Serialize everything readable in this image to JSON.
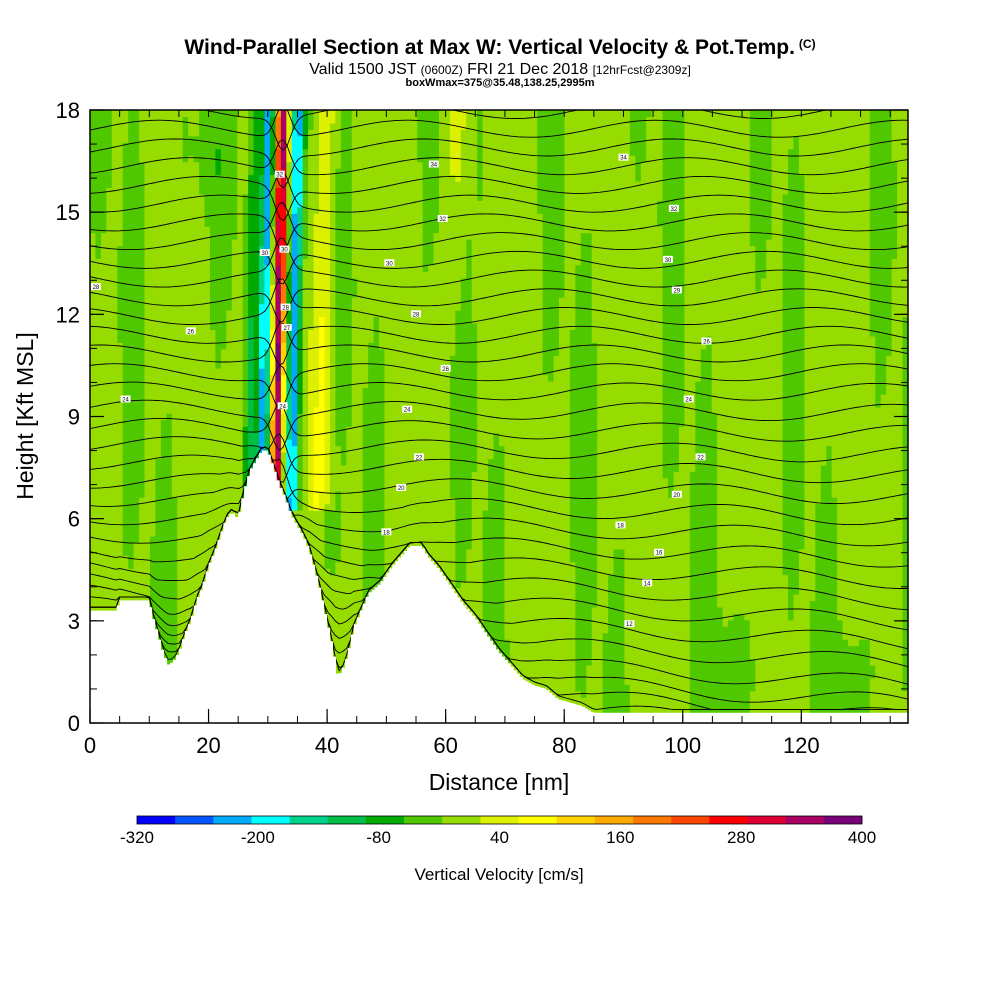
{
  "header": {
    "title": "Wind-Parallel Section at Max W: Vertical Velocity & Pot.Temp.",
    "title_mark": "(C)",
    "valid_prefix": "Valid 1500 JST",
    "valid_utc": "(0600Z)",
    "valid_date": "FRI 21 Dec 2018",
    "forecast_info": "[12hrFcst@2309z]",
    "box_info": "boxWmax=375@35.48,138.25,2995m"
  },
  "chart_data": {
    "type": "heatmap",
    "xlabel": "Distance [nm]",
    "ylabel": "Height [Kft MSL]",
    "xlim": [
      0,
      138
    ],
    "ylim": [
      0,
      18
    ],
    "x_ticks": [
      "0",
      "20",
      "40",
      "60",
      "80",
      "100",
      "120"
    ],
    "y_ticks": [
      "0",
      "3",
      "6",
      "9",
      "12",
      "15",
      "18"
    ],
    "colorbar": {
      "title": "Vertical Velocity [cm/s]",
      "min": -320,
      "max": 400,
      "step": 40,
      "tick_labels": [
        "-320",
        "-200",
        "-80",
        "40",
        "160",
        "280",
        "400"
      ],
      "colors": [
        "#0000ff",
        "#0055ff",
        "#00aaff",
        "#00ffff",
        "#00d28c",
        "#00be46",
        "#00aa00",
        "#50c800",
        "#96dc00",
        "#dcf000",
        "#ffff00",
        "#ffd200",
        "#ffaa00",
        "#ff7800",
        "#ff4600",
        "#ff0000",
        "#dc0032",
        "#aa0064",
        "#780078"
      ]
    },
    "terrain_kft": [
      [
        0,
        3.3
      ],
      [
        4.5,
        3.3
      ],
      [
        5,
        3.6
      ],
      [
        10,
        3.6
      ],
      [
        10.5,
        3.2
      ],
      [
        11.5,
        2.6
      ],
      [
        12.5,
        2.0
      ],
      [
        13.3,
        1.7
      ],
      [
        14.5,
        1.9
      ],
      [
        15.3,
        2.2
      ],
      [
        16,
        2.6
      ],
      [
        17,
        3.0
      ],
      [
        18,
        3.6
      ],
      [
        19,
        4.0
      ],
      [
        20,
        4.6
      ],
      [
        21,
        5.0
      ],
      [
        22,
        5.5
      ],
      [
        23,
        6.0
      ],
      [
        24,
        6.2
      ],
      [
        25,
        6.0
      ],
      [
        26,
        6.8
      ],
      [
        27,
        7.4
      ],
      [
        28,
        7.7
      ],
      [
        29,
        8.0
      ],
      [
        30,
        8.0
      ],
      [
        31,
        7.5
      ],
      [
        32,
        7.0
      ],
      [
        33,
        6.6
      ],
      [
        34,
        6.1
      ],
      [
        35,
        5.8
      ],
      [
        36,
        5.5
      ],
      [
        37,
        5.1
      ],
      [
        38,
        4.5
      ],
      [
        39,
        3.8
      ],
      [
        40,
        3.0
      ],
      [
        41,
        2.2
      ],
      [
        41.8,
        1.4
      ],
      [
        42.5,
        1.5
      ],
      [
        43.5,
        2.0
      ],
      [
        44.5,
        2.8
      ],
      [
        45.5,
        3.2
      ],
      [
        47,
        3.8
      ],
      [
        49,
        4.1
      ],
      [
        51,
        4.6
      ],
      [
        53,
        5.0
      ],
      [
        54,
        5.2
      ],
      [
        56,
        5.2
      ],
      [
        57,
        4.9
      ],
      [
        59,
        4.5
      ],
      [
        61,
        4.0
      ],
      [
        63,
        3.5
      ],
      [
        65,
        3.1
      ],
      [
        67,
        2.6
      ],
      [
        69,
        2.1
      ],
      [
        71,
        1.7
      ],
      [
        73,
        1.3
      ],
      [
        75,
        1.1
      ],
      [
        77,
        1.0
      ],
      [
        79,
        0.7
      ],
      [
        81,
        0.6
      ],
      [
        83,
        0.5
      ],
      [
        85,
        0.3
      ],
      [
        138,
        0.3
      ]
    ],
    "updraft_band": {
      "x_at_bottom": 31.5,
      "x_at_top": 32.5,
      "bottom_kft": 7.8,
      "peak_cm_s": 375,
      "peak_location": "35.48,138.25"
    },
    "isentrope_labels": [
      {
        "x": 1,
        "y": 12.8,
        "text": "28"
      },
      {
        "x": 17,
        "y": 11.5,
        "text": "26"
      },
      {
        "x": 6,
        "y": 9.5,
        "text": "24"
      },
      {
        "x": 29.5,
        "y": 13.8,
        "text": "30"
      },
      {
        "x": 32,
        "y": 16.1,
        "text": "32"
      },
      {
        "x": 32.8,
        "y": 13.9,
        "text": "30"
      },
      {
        "x": 33,
        "y": 12.2,
        "text": "28"
      },
      {
        "x": 33.2,
        "y": 11.6,
        "text": "27"
      },
      {
        "x": 32.5,
        "y": 9.3,
        "text": "24"
      },
      {
        "x": 58,
        "y": 16.4,
        "text": "34"
      },
      {
        "x": 59.5,
        "y": 14.8,
        "text": "32"
      },
      {
        "x": 50.5,
        "y": 13.5,
        "text": "30"
      },
      {
        "x": 55,
        "y": 12,
        "text": "28"
      },
      {
        "x": 60,
        "y": 10.4,
        "text": "26"
      },
      {
        "x": 53.5,
        "y": 9.2,
        "text": "24"
      },
      {
        "x": 55.5,
        "y": 7.8,
        "text": "22"
      },
      {
        "x": 52.5,
        "y": 6.9,
        "text": "20"
      },
      {
        "x": 50,
        "y": 5.6,
        "text": "18"
      },
      {
        "x": 90,
        "y": 16.6,
        "text": "34"
      },
      {
        "x": 98.5,
        "y": 15.1,
        "text": "32"
      },
      {
        "x": 97.5,
        "y": 13.6,
        "text": "30"
      },
      {
        "x": 99,
        "y": 12.7,
        "text": "29"
      },
      {
        "x": 104,
        "y": 11.2,
        "text": "26"
      },
      {
        "x": 101,
        "y": 9.5,
        "text": "24"
      },
      {
        "x": 103,
        "y": 7.8,
        "text": "22"
      },
      {
        "x": 99,
        "y": 6.7,
        "text": "20"
      },
      {
        "x": 89.5,
        "y": 5.8,
        "text": "18"
      },
      {
        "x": 96,
        "y": 5.0,
        "text": "16"
      },
      {
        "x": 94,
        "y": 4.1,
        "text": "14"
      },
      {
        "x": 91,
        "y": 2.9,
        "text": "12"
      }
    ]
  }
}
